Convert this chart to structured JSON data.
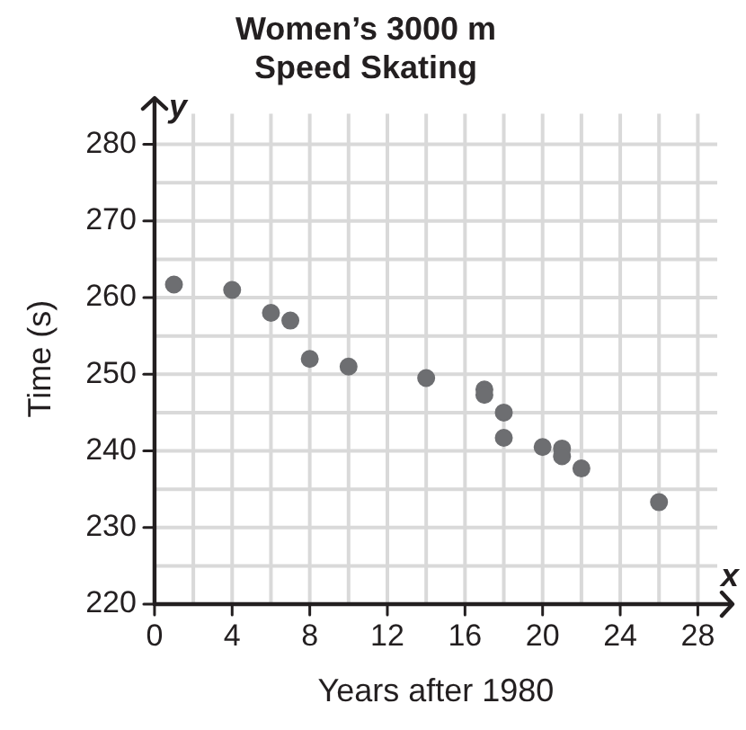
{
  "chart_data": {
    "type": "scatter",
    "title": "Women’s 3000 m\nSpeed Skating",
    "xlabel": "Years after 1980",
    "ylabel": "Time (s)",
    "x": [
      1,
      4,
      6,
      7,
      8,
      10,
      14,
      17,
      17,
      18,
      18,
      20,
      21,
      21,
      22,
      26
    ],
    "values": [
      261.7,
      261,
      258,
      257,
      252,
      251,
      249.5,
      248,
      247.3,
      245,
      241.7,
      240.5,
      240.3,
      239.3,
      237.7,
      233.3
    ],
    "color": "#6d6e71",
    "marker": "circle",
    "xlim": [
      0,
      29
    ],
    "xticks": [
      0,
      4,
      8,
      12,
      16,
      20,
      24,
      28
    ],
    "ylim": [
      220,
      284
    ],
    "yticks": [
      220,
      230,
      240,
      250,
      260,
      270,
      280
    ],
    "grid": true,
    "legend": false,
    "annotations": [
      "x",
      "y"
    ]
  }
}
